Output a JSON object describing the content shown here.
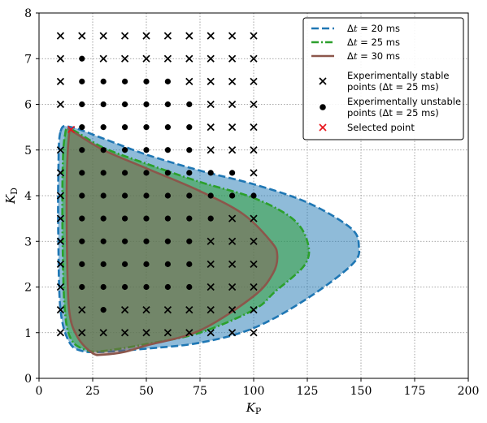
{
  "chart_data": {
    "type": "scatter",
    "xlabel": "K_P",
    "ylabel": "K_D",
    "xlim": [
      0,
      200
    ],
    "ylim": [
      0,
      8
    ],
    "xticks": [
      "0",
      "25",
      "50",
      "75",
      "100",
      "125",
      "150",
      "175",
      "200"
    ],
    "yticks": [
      "0",
      "1",
      "2",
      "3",
      "4",
      "5",
      "6",
      "7",
      "8"
    ],
    "grid": true,
    "legend_position": "top-right",
    "regions": [
      {
        "name": "Δt = 20 ms",
        "color": "#1f77b4",
        "fill_alpha": 0.5,
        "line_style": "dashed",
        "boundary": [
          [
            10,
            5.4
          ],
          [
            15,
            5.5
          ],
          [
            30,
            5.25
          ],
          [
            50,
            4.9
          ],
          [
            75,
            4.55
          ],
          [
            100,
            4.25
          ],
          [
            125,
            3.85
          ],
          [
            145,
            3.3
          ],
          [
            149,
            2.9
          ],
          [
            146,
            2.5
          ],
          [
            125,
            1.75
          ],
          [
            100,
            1.1
          ],
          [
            75,
            0.78
          ],
          [
            50,
            0.65
          ],
          [
            30,
            0.58
          ],
          [
            20,
            0.6
          ],
          [
            14,
            0.8
          ],
          [
            10,
            1.5
          ],
          [
            9,
            3
          ],
          [
            9,
            4.5
          ],
          [
            10,
            5.4
          ]
        ]
      },
      {
        "name": "Δt = 25 ms",
        "color": "#2ca02c",
        "fill_alpha": 0.5,
        "line_style": "dashdot",
        "boundary": [
          [
            12,
            5.3
          ],
          [
            15,
            5.45
          ],
          [
            30,
            5.05
          ],
          [
            50,
            4.7
          ],
          [
            75,
            4.3
          ],
          [
            100,
            3.95
          ],
          [
            118,
            3.5
          ],
          [
            125,
            3.0
          ],
          [
            124,
            2.5
          ],
          [
            110,
            1.9
          ],
          [
            100,
            1.5
          ],
          [
            75,
            1.0
          ],
          [
            50,
            0.75
          ],
          [
            30,
            0.6
          ],
          [
            22,
            0.62
          ],
          [
            15,
            0.85
          ],
          [
            12,
            1.5
          ],
          [
            11,
            3
          ],
          [
            11,
            4.5
          ],
          [
            12,
            5.3
          ]
        ]
      },
      {
        "name": "Δt = 30 ms",
        "color": "#8c564b",
        "fill_alpha": 0.45,
        "line_style": "solid",
        "boundary": [
          [
            14,
            5.35
          ],
          [
            15,
            5.42
          ],
          [
            30,
            5.0
          ],
          [
            50,
            4.6
          ],
          [
            75,
            4.1
          ],
          [
            95,
            3.6
          ],
          [
            108,
            3.0
          ],
          [
            111,
            2.7
          ],
          [
            109,
            2.3
          ],
          [
            100,
            1.8
          ],
          [
            75,
            1.05
          ],
          [
            50,
            0.72
          ],
          [
            40,
            0.58
          ],
          [
            30,
            0.52
          ],
          [
            25,
            0.55
          ],
          [
            18,
            0.9
          ],
          [
            14,
            1.5
          ],
          [
            13,
            3
          ],
          [
            13,
            4.5
          ],
          [
            14,
            5.35
          ]
        ]
      }
    ],
    "series": [
      {
        "name": "Experimentally stable points (Δt = 25 ms)",
        "marker": "x",
        "color": "#000000",
        "points": [
          [
            10,
            7.5
          ],
          [
            20,
            7.5
          ],
          [
            30,
            7.5
          ],
          [
            40,
            7.5
          ],
          [
            50,
            7.5
          ],
          [
            60,
            7.5
          ],
          [
            70,
            7.5
          ],
          [
            80,
            7.5
          ],
          [
            90,
            7.5
          ],
          [
            100,
            7.5
          ],
          [
            10,
            7
          ],
          [
            30,
            7
          ],
          [
            40,
            7
          ],
          [
            50,
            7
          ],
          [
            60,
            7
          ],
          [
            70,
            7
          ],
          [
            80,
            7
          ],
          [
            90,
            7
          ],
          [
            100,
            7
          ],
          [
            10,
            6.5
          ],
          [
            70,
            6.5
          ],
          [
            80,
            6.5
          ],
          [
            90,
            6.5
          ],
          [
            100,
            6.5
          ],
          [
            10,
            6
          ],
          [
            80,
            6
          ],
          [
            90,
            6
          ],
          [
            100,
            6
          ],
          [
            80,
            5.5
          ],
          [
            90,
            5.5
          ],
          [
            100,
            5.5
          ],
          [
            10,
            5
          ],
          [
            80,
            5
          ],
          [
            90,
            5
          ],
          [
            100,
            5
          ],
          [
            10,
            4.5
          ],
          [
            100,
            4.5
          ],
          [
            10,
            4
          ],
          [
            10,
            3.5
          ],
          [
            90,
            3.5
          ],
          [
            100,
            3.5
          ],
          [
            10,
            3
          ],
          [
            80,
            3
          ],
          [
            90,
            3
          ],
          [
            100,
            3
          ],
          [
            10,
            2.5
          ],
          [
            80,
            2.5
          ],
          [
            90,
            2.5
          ],
          [
            100,
            2.5
          ],
          [
            10,
            2
          ],
          [
            80,
            2
          ],
          [
            90,
            2
          ],
          [
            100,
            2
          ],
          [
            10,
            1.5
          ],
          [
            20,
            1.5
          ],
          [
            40,
            1.5
          ],
          [
            50,
            1.5
          ],
          [
            60,
            1.5
          ],
          [
            70,
            1.5
          ],
          [
            80,
            1.5
          ],
          [
            90,
            1.5
          ],
          [
            100,
            1.5
          ],
          [
            10,
            1
          ],
          [
            20,
            1
          ],
          [
            30,
            1
          ],
          [
            40,
            1
          ],
          [
            50,
            1
          ],
          [
            60,
            1
          ],
          [
            70,
            1
          ],
          [
            80,
            1
          ],
          [
            90,
            1
          ],
          [
            100,
            1
          ]
        ]
      },
      {
        "name": "Experimentally unstable points (Δt = 25 ms)",
        "marker": "o",
        "color": "#000000",
        "points": [
          [
            20,
            7
          ],
          [
            20,
            6.5
          ],
          [
            30,
            6.5
          ],
          [
            40,
            6.5
          ],
          [
            50,
            6.5
          ],
          [
            60,
            6.5
          ],
          [
            20,
            6
          ],
          [
            30,
            6
          ],
          [
            40,
            6
          ],
          [
            50,
            6
          ],
          [
            60,
            6
          ],
          [
            70,
            6
          ],
          [
            20,
            5.5
          ],
          [
            30,
            5.5
          ],
          [
            40,
            5.5
          ],
          [
            50,
            5.5
          ],
          [
            60,
            5.5
          ],
          [
            70,
            5.5
          ],
          [
            20,
            5
          ],
          [
            30,
            5
          ],
          [
            40,
            5
          ],
          [
            50,
            5
          ],
          [
            60,
            5
          ],
          [
            70,
            5
          ],
          [
            20,
            4.5
          ],
          [
            30,
            4.5
          ],
          [
            40,
            4.5
          ],
          [
            50,
            4.5
          ],
          [
            60,
            4.5
          ],
          [
            70,
            4.5
          ],
          [
            80,
            4.5
          ],
          [
            90,
            4.5
          ],
          [
            20,
            4
          ],
          [
            30,
            4
          ],
          [
            40,
            4
          ],
          [
            50,
            4
          ],
          [
            60,
            4
          ],
          [
            70,
            4
          ],
          [
            80,
            4
          ],
          [
            90,
            4
          ],
          [
            100,
            4
          ],
          [
            20,
            3.5
          ],
          [
            30,
            3.5
          ],
          [
            40,
            3.5
          ],
          [
            50,
            3.5
          ],
          [
            60,
            3.5
          ],
          [
            70,
            3.5
          ],
          [
            80,
            3.5
          ],
          [
            20,
            3
          ],
          [
            30,
            3
          ],
          [
            40,
            3
          ],
          [
            50,
            3
          ],
          [
            60,
            3
          ],
          [
            70,
            3
          ],
          [
            20,
            2.5
          ],
          [
            30,
            2.5
          ],
          [
            40,
            2.5
          ],
          [
            50,
            2.5
          ],
          [
            60,
            2.5
          ],
          [
            70,
            2.5
          ],
          [
            20,
            2
          ],
          [
            30,
            2
          ],
          [
            40,
            2
          ],
          [
            50,
            2
          ],
          [
            60,
            2
          ],
          [
            70,
            2
          ],
          [
            30,
            1.5
          ]
        ]
      },
      {
        "name": "Selected point",
        "marker": "x",
        "color": "#e8141b",
        "points": [
          [
            15,
            5.45
          ]
        ]
      }
    ],
    "legend": [
      {
        "kind": "line",
        "style": "dashed",
        "color": "#1f77b4",
        "label_pre": "Δ",
        "label_var": "t",
        "label_post": " = 20 ms"
      },
      {
        "kind": "line",
        "style": "dashdot",
        "color": "#2ca02c",
        "label_pre": "Δ",
        "label_var": "t",
        "label_post": " = 25 ms"
      },
      {
        "kind": "line",
        "style": "solid",
        "color": "#8c564b",
        "label_pre": "Δ",
        "label_var": "t",
        "label_post": " = 30 ms"
      },
      {
        "kind": "x",
        "color": "#000000",
        "line1": "Experimentally stable",
        "line2": "points (Δt = 25 ms)"
      },
      {
        "kind": "dot",
        "color": "#000000",
        "line1": "Experimentally unstable",
        "line2": "points (Δt = 25 ms)"
      },
      {
        "kind": "x",
        "color": "#e8141b",
        "line1": "Selected point",
        "line2": ""
      }
    ]
  }
}
